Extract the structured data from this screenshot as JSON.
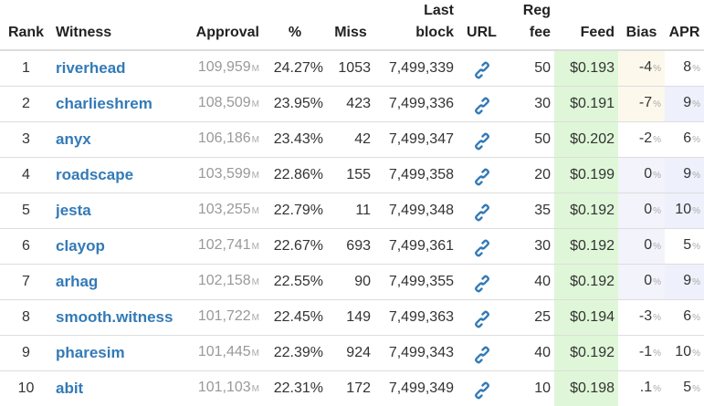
{
  "headers": {
    "rank": "Rank",
    "witness": "Witness",
    "approval": "Approval",
    "pct": "%",
    "miss": "Miss",
    "last_block_1": "Last",
    "last_block_2": "block",
    "url": "URL",
    "reg_fee_1": "Reg",
    "reg_fee_2": "fee",
    "feed": "Feed",
    "bias": "Bias",
    "apr": "APR"
  },
  "approval_unit": "M",
  "pct_unit": "%",
  "url_icon": "link-icon",
  "colors": {
    "link": "#337ab7",
    "feed_bg": "#dff7d8",
    "bias_neg_bg": "#fdf8ec",
    "bias_zero_bg": "#f3f3fb"
  },
  "rows": [
    {
      "rank": "1",
      "witness": "riverhead",
      "approval": "109,959",
      "pct": "24.27%",
      "miss": "1053",
      "last_block": "7,499,339",
      "reg_fee": "50",
      "feed": "$0.193",
      "bias": "-4",
      "apr": "8",
      "bias_style": "neg",
      "apr_style": "plain"
    },
    {
      "rank": "2",
      "witness": "charlieshrem",
      "approval": "108,509",
      "pct": "23.95%",
      "miss": "423",
      "last_block": "7,499,336",
      "reg_fee": "30",
      "feed": "$0.191",
      "bias": "-7",
      "apr": "9",
      "bias_style": "neg",
      "apr_style": "hi"
    },
    {
      "rank": "3",
      "witness": "anyx",
      "approval": "106,186",
      "pct": "23.43%",
      "miss": "42",
      "last_block": "7,499,347",
      "reg_fee": "50",
      "feed": "$0.202",
      "bias": "-2",
      "apr": "6",
      "bias_style": "plain",
      "apr_style": "plain"
    },
    {
      "rank": "4",
      "witness": "roadscape",
      "approval": "103,599",
      "pct": "22.86%",
      "miss": "155",
      "last_block": "7,499,358",
      "reg_fee": "20",
      "feed": "$0.199",
      "bias": "0",
      "apr": "9",
      "bias_style": "zero",
      "apr_style": "hi"
    },
    {
      "rank": "5",
      "witness": "jesta",
      "approval": "103,255",
      "pct": "22.79%",
      "miss": "11",
      "last_block": "7,499,348",
      "reg_fee": "35",
      "feed": "$0.192",
      "bias": "0",
      "apr": "10",
      "bias_style": "zero",
      "apr_style": "hi"
    },
    {
      "rank": "6",
      "witness": "clayop",
      "approval": "102,741",
      "pct": "22.67%",
      "miss": "693",
      "last_block": "7,499,361",
      "reg_fee": "30",
      "feed": "$0.192",
      "bias": "0",
      "apr": "5",
      "bias_style": "zero",
      "apr_style": "plain"
    },
    {
      "rank": "7",
      "witness": "arhag",
      "approval": "102,158",
      "pct": "22.55%",
      "miss": "90",
      "last_block": "7,499,355",
      "reg_fee": "40",
      "feed": "$0.192",
      "bias": "0",
      "apr": "9",
      "bias_style": "zero",
      "apr_style": "hi"
    },
    {
      "rank": "8",
      "witness": "smooth.witness",
      "approval": "101,722",
      "pct": "22.45%",
      "miss": "149",
      "last_block": "7,499,363",
      "reg_fee": "25",
      "feed": "$0.194",
      "bias": "-3",
      "apr": "6",
      "bias_style": "plain",
      "apr_style": "plain"
    },
    {
      "rank": "9",
      "witness": "pharesim",
      "approval": "101,445",
      "pct": "22.39%",
      "miss": "924",
      "last_block": "7,499,343",
      "reg_fee": "40",
      "feed": "$0.192",
      "bias": "-1",
      "apr": "10",
      "bias_style": "plain",
      "apr_style": "plain"
    },
    {
      "rank": "10",
      "witness": "abit",
      "approval": "101,103",
      "pct": "22.31%",
      "miss": "172",
      "last_block": "7,499,349",
      "reg_fee": "10",
      "feed": "$0.198",
      "bias": ".1",
      "apr": "5",
      "bias_style": "plain",
      "apr_style": "plain"
    }
  ]
}
